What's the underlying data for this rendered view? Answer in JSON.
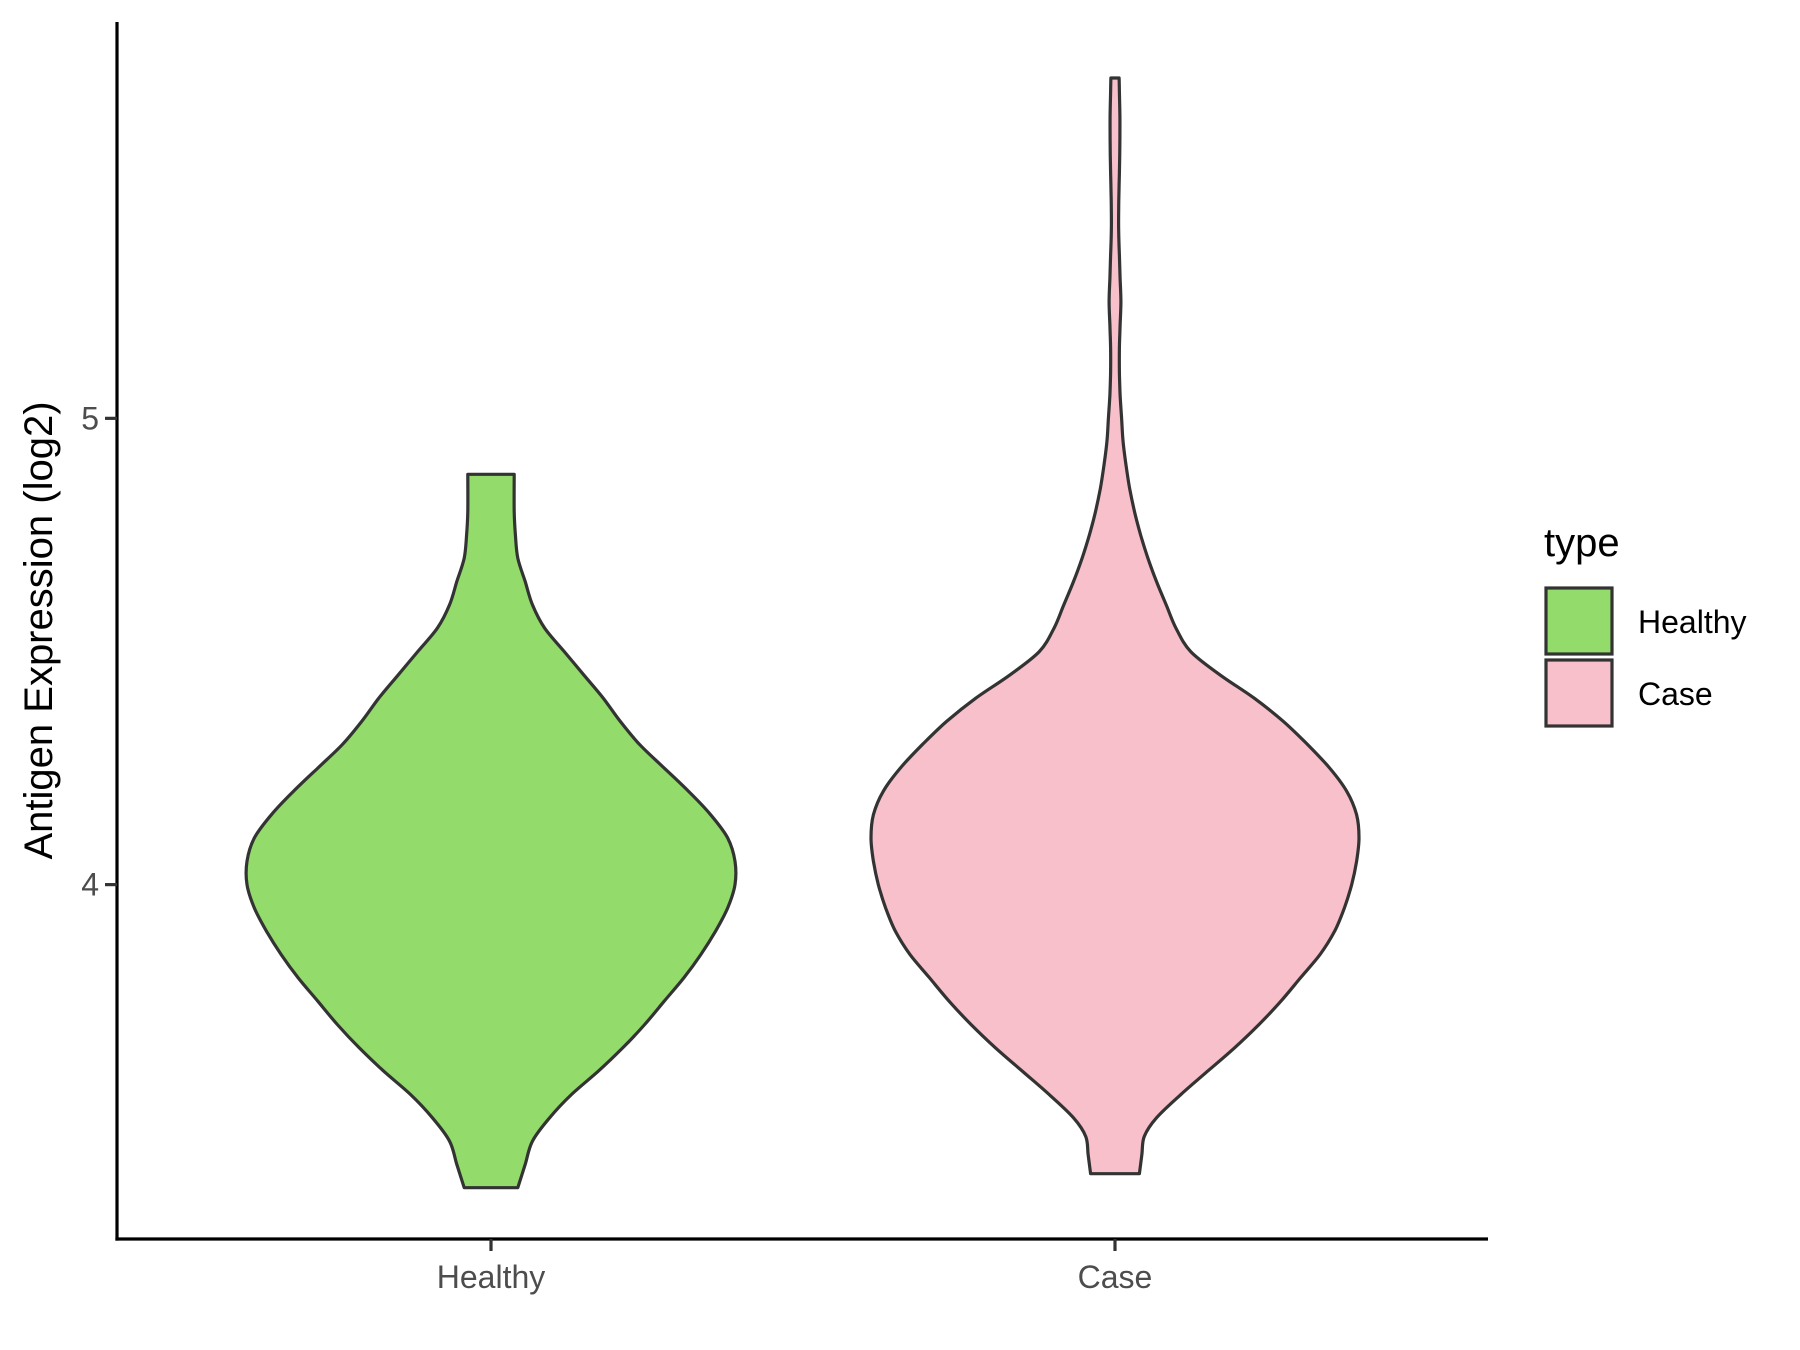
{
  "chart_data": {
    "type": "violin",
    "title": "",
    "xlabel": "",
    "ylabel": "Antigen Expression (log2)",
    "categories": [
      "Healthy",
      "Case"
    ],
    "y_ticks": [
      4,
      5
    ],
    "ylim": [
      3.24,
      5.85
    ],
    "grid": false,
    "legend": {
      "title": "type",
      "placement": "right",
      "items": [
        {
          "label": "Healthy",
          "color": "#93dc6b"
        },
        {
          "label": "Case",
          "color": "#f7c0cb"
        }
      ]
    },
    "series": [
      {
        "name": "Healthy",
        "color": "#93dc6b",
        "y_min": 3.35,
        "y_max": 4.88,
        "density_profile": [
          [
            3.35,
            0.11
          ],
          [
            3.4,
            0.14
          ],
          [
            3.45,
            0.17
          ],
          [
            3.5,
            0.24
          ],
          [
            3.55,
            0.33
          ],
          [
            3.6,
            0.44
          ],
          [
            3.65,
            0.54
          ],
          [
            3.7,
            0.63
          ],
          [
            3.75,
            0.71
          ],
          [
            3.8,
            0.79
          ],
          [
            3.85,
            0.86
          ],
          [
            3.9,
            0.92
          ],
          [
            3.95,
            0.97
          ],
          [
            4.0,
            1.0
          ],
          [
            4.05,
            1.0
          ],
          [
            4.1,
            0.97
          ],
          [
            4.15,
            0.9
          ],
          [
            4.2,
            0.81
          ],
          [
            4.25,
            0.71
          ],
          [
            4.3,
            0.61
          ],
          [
            4.35,
            0.53
          ],
          [
            4.4,
            0.46
          ],
          [
            4.45,
            0.38
          ],
          [
            4.5,
            0.3
          ],
          [
            4.55,
            0.22
          ],
          [
            4.6,
            0.17
          ],
          [
            4.65,
            0.14
          ],
          [
            4.7,
            0.11
          ],
          [
            4.75,
            0.1
          ],
          [
            4.8,
            0.095
          ],
          [
            4.88,
            0.095
          ]
        ]
      },
      {
        "name": "Case",
        "color": "#f7c0cb",
        "y_min": 3.38,
        "y_max": 5.73,
        "density_profile": [
          [
            3.38,
            0.1
          ],
          [
            3.42,
            0.11
          ],
          [
            3.46,
            0.12
          ],
          [
            3.5,
            0.17
          ],
          [
            3.55,
            0.27
          ],
          [
            3.6,
            0.38
          ],
          [
            3.65,
            0.49
          ],
          [
            3.7,
            0.59
          ],
          [
            3.75,
            0.68
          ],
          [
            3.8,
            0.76
          ],
          [
            3.85,
            0.84
          ],
          [
            3.9,
            0.9
          ],
          [
            3.95,
            0.94
          ],
          [
            4.0,
            0.97
          ],
          [
            4.05,
            0.99
          ],
          [
            4.1,
            1.0
          ],
          [
            4.15,
            0.99
          ],
          [
            4.2,
            0.95
          ],
          [
            4.25,
            0.88
          ],
          [
            4.3,
            0.79
          ],
          [
            4.35,
            0.69
          ],
          [
            4.4,
            0.57
          ],
          [
            4.45,
            0.43
          ],
          [
            4.5,
            0.31
          ],
          [
            4.55,
            0.25
          ],
          [
            4.6,
            0.21
          ],
          [
            4.65,
            0.17
          ],
          [
            4.7,
            0.135
          ],
          [
            4.75,
            0.105
          ],
          [
            4.8,
            0.08
          ],
          [
            4.85,
            0.06
          ],
          [
            4.9,
            0.045
          ],
          [
            4.95,
            0.033
          ],
          [
            5.0,
            0.027
          ],
          [
            5.05,
            0.021
          ],
          [
            5.1,
            0.018
          ],
          [
            5.15,
            0.018
          ],
          [
            5.2,
            0.021
          ],
          [
            5.25,
            0.024
          ],
          [
            5.3,
            0.021
          ],
          [
            5.35,
            0.018
          ],
          [
            5.4,
            0.015
          ],
          [
            5.45,
            0.015
          ],
          [
            5.5,
            0.017
          ],
          [
            5.55,
            0.019
          ],
          [
            5.6,
            0.02
          ],
          [
            5.65,
            0.02
          ],
          [
            5.7,
            0.018
          ],
          [
            5.73,
            0.017
          ]
        ]
      }
    ]
  }
}
